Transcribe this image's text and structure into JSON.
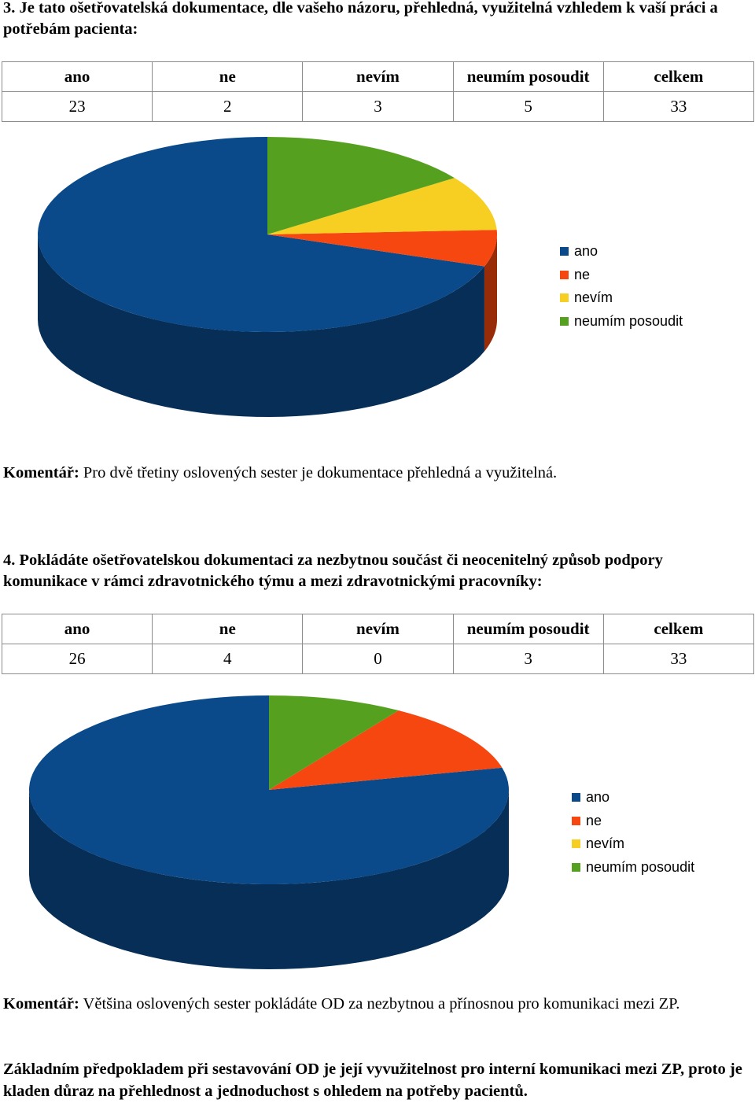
{
  "colors": {
    "ano": "#0a4a8a",
    "ne": "#f5470f",
    "nevim": "#f6cf22",
    "neumim": "#56a020"
  },
  "table_headers": [
    "ano",
    "ne",
    "nevím",
    "neumím posoudit",
    "celkem"
  ],
  "q3": {
    "title": "3. Je tato ošetřovatelská dokumentace, dle vašeho názoru, přehledná, využitelná vzhledem k vaší práci a potřebám pacienta:",
    "row": [
      "23",
      "2",
      "3",
      "5",
      "33"
    ],
    "comment_label": "Komentář:",
    "comment_text": " Pro dvě třetiny oslovených sester je dokumentace přehledná a využitelná."
  },
  "q4": {
    "title": "4. Pokládáte ošetřovatelskou dokumentaci za nezbytnou součást či neocenitelný způsob podpory komunikace v rámci zdravotnického týmu a mezi zdravotnickými pracovníky:",
    "row": [
      "26",
      "4",
      "0",
      "3",
      "33"
    ],
    "comment_label": "Komentář:",
    "comment_text": " Většina oslovených sester pokládáte OD za nezbytnou a přínosnou pro komunikaci mezi ZP."
  },
  "conclusion": "Základním předpokladem při sestavování OD je její vyvužitelnost pro interní komunikaci mezi ZP, proto je kladen důraz na přehlednost a jednoduchost s ohledem na potřeby pacientů.",
  "chart_data": [
    {
      "type": "pie",
      "categories": [
        "ano",
        "ne",
        "nevím",
        "neumím posoudit"
      ],
      "values": [
        23,
        2,
        3,
        5
      ],
      "legend": [
        "ano",
        "ne",
        "nevím",
        "neumím posoudit"
      ],
      "legend_position": "right",
      "style": "3d"
    },
    {
      "type": "pie",
      "categories": [
        "ano",
        "ne",
        "nevím",
        "neumím posoudit"
      ],
      "values": [
        26,
        4,
        0,
        3
      ],
      "legend": [
        "ano",
        "ne",
        "nevím",
        "neumím posoudit"
      ],
      "legend_position": "right",
      "style": "3d"
    }
  ]
}
